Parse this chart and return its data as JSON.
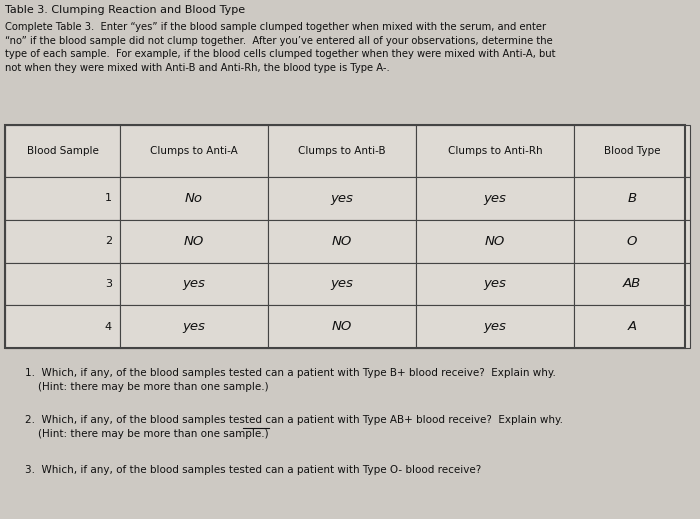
{
  "title": "Table 3. Clumping Reaction and Blood Type",
  "intro_text": "Complete Table 3.  Enter “yes” if the blood sample clumped together when mixed with the serum, and enter\n“no” if the blood sample did not clump together.  After you’ve entered all of your observations, determine the\ntype of each sample.  For example, if the blood cells clumped together when they were mixed with Anti-A, but\nnot when they were mixed with Anti-B and Anti-Rh, the blood type is Type A-.",
  "col_headers": [
    "Blood Sample",
    "Clumps to Anti-A",
    "Clumps to Anti-B",
    "Clumps to Anti-Rh",
    "Blood Type"
  ],
  "rows": [
    [
      "1",
      "No",
      "yes",
      "yes",
      "B"
    ],
    [
      "2",
      "NO",
      "NO",
      "NO",
      "O"
    ],
    [
      "3",
      "yes",
      "yes",
      "yes",
      "AB"
    ],
    [
      "4",
      "yes",
      "NO",
      "yes",
      "A"
    ]
  ],
  "q1": "1.  Which, if any, of the blood samples tested can a patient with Type B+ blood receive?  Explain why.",
  "q1_hint": "    (Hint: there may be more than one sample.)",
  "q2_pre": "2.  Which, if any, of the blood samples tested can a patient with ",
  "q2_underline": "Type AB+",
  "q2_post": " blood receive?  Explain why.",
  "q2_hint": "    (Hint: there may be more than one sample.)",
  "q3": "3.  Which, if any, of the blood samples tested can a patient with Type O- blood receive?",
  "bg_color": "#cdc9c3",
  "table_bg": "#dedad4",
  "border_color": "#444444",
  "text_color": "#111111",
  "handwritten_color": "#111111",
  "font_size_title": 8.0,
  "font_size_intro": 7.2,
  "font_size_header": 7.5,
  "font_size_cell_num": 8.0,
  "font_size_cell_hw": 9.5,
  "font_size_question": 7.5
}
